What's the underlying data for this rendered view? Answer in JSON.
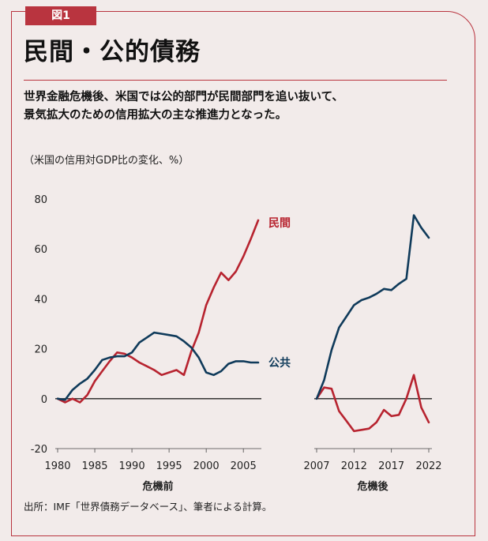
{
  "figure_label": "図1",
  "title": "民間・公的債務",
  "subtitle_lines": [
    "世界金融危機後、米国では公的部門が民間部門を追い抜いて、",
    "景気拡大のための信用拡大の主な推進力となった。"
  ],
  "unit_note": "（米国の信用対GDP比の変化、%）",
  "source": "出所：IMF「世界債務データベース」、筆者による計算。",
  "colors": {
    "private": "#b7232f",
    "public": "#0f3a5a",
    "accent": "#b9343f"
  },
  "chart_data": [
    {
      "type": "line",
      "xlabel": "危機前",
      "ylabel": "",
      "xlim": [
        1980,
        2007
      ],
      "ylim": [
        -20,
        80
      ],
      "y_ticks": [
        80,
        60,
        40,
        20,
        0,
        -20
      ],
      "x_ticks": [
        1980,
        1985,
        1990,
        1995,
        2000,
        2005
      ],
      "grid": false,
      "series": [
        {
          "name": "民間",
          "key": "private",
          "x": [
            1980,
            1981,
            1982,
            1983,
            1984,
            1985,
            1986,
            1987,
            1988,
            1989,
            1990,
            1991,
            1992,
            1993,
            1994,
            1995,
            1996,
            1997,
            1998,
            1999,
            2000,
            2001,
            2002,
            2003,
            2004,
            2005,
            2006,
            2007
          ],
          "y": [
            0,
            -1.5,
            0,
            -1.5,
            1.5,
            7,
            11,
            15,
            18.5,
            18,
            16.5,
            14.5,
            13,
            11.5,
            9.5,
            10.5,
            11.5,
            9.5,
            19,
            26.5,
            37.5,
            44.5,
            50.5,
            47.5,
            51,
            57,
            64,
            71.5
          ]
        },
        {
          "name": "公共",
          "key": "public",
          "x": [
            1980,
            1981,
            1982,
            1983,
            1984,
            1985,
            1986,
            1987,
            1988,
            1989,
            1990,
            1991,
            1992,
            1993,
            1994,
            1995,
            1996,
            1997,
            1998,
            1999,
            2000,
            2001,
            2002,
            2003,
            2004,
            2005,
            2006,
            2007
          ],
          "y": [
            0,
            -0.5,
            3.5,
            6,
            8,
            11.5,
            15.5,
            16.5,
            17,
            17,
            18.5,
            22.5,
            24.5,
            26.5,
            26,
            25.5,
            25,
            23,
            20.5,
            16.5,
            10.5,
            9.5,
            11,
            14,
            15,
            15,
            14.5,
            14.5
          ]
        }
      ]
    },
    {
      "type": "line",
      "xlabel": "危機後",
      "ylabel": "",
      "xlim": [
        2007,
        2022
      ],
      "ylim": [
        -20,
        80
      ],
      "x_ticks": [
        2007,
        2012,
        2017,
        2022
      ],
      "grid": false,
      "series": [
        {
          "name": "民間",
          "key": "private",
          "x": [
            2007,
            2008,
            2009,
            2010,
            2011,
            2012,
            2013,
            2014,
            2015,
            2016,
            2017,
            2018,
            2019,
            2020,
            2021,
            2022
          ],
          "y": [
            0,
            4.5,
            4,
            -5,
            -9,
            -13,
            -12.5,
            -12,
            -9.5,
            -4.5,
            -7,
            -6.5,
            0,
            9.5,
            -3.5,
            -9.5
          ]
        },
        {
          "name": "公共",
          "key": "public",
          "x": [
            2007,
            2008,
            2009,
            2010,
            2011,
            2012,
            2013,
            2014,
            2015,
            2016,
            2017,
            2018,
            2019,
            2020,
            2021,
            2022
          ],
          "y": [
            0,
            7.5,
            19.5,
            28.5,
            33,
            37.5,
            39.5,
            40.5,
            42,
            44,
            43.5,
            46,
            48,
            73.5,
            68.5,
            64.5
          ]
        }
      ]
    }
  ]
}
